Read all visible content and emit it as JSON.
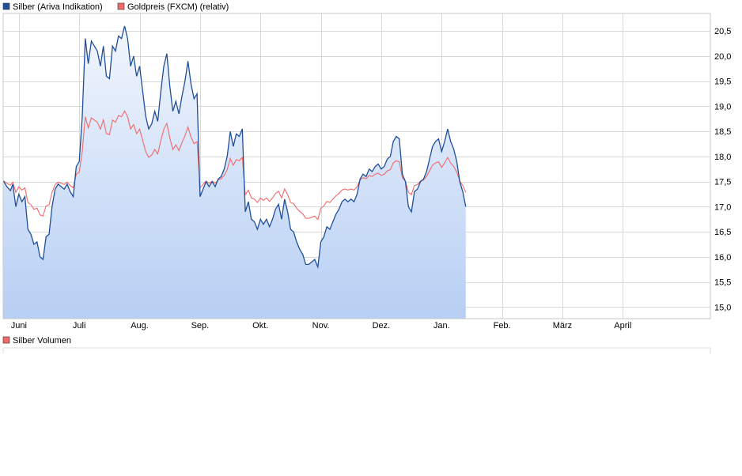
{
  "chart_data": [
    {
      "type": "line",
      "legend": [
        {
          "label": "Silber (Ariva Indikation)",
          "color": "#1f4e9a"
        },
        {
          "label": "Goldpreis (FXCM) (relativ)",
          "color": "#f06a6a"
        }
      ],
      "x_tick_labels": [
        "Juni",
        "Juli",
        "Aug.",
        "Sep.",
        "Okt.",
        "Nov.",
        "Dez.",
        "Jan.",
        "Feb.",
        "März",
        "April"
      ],
      "y_tick_labels": [
        "15,0",
        "15,5",
        "16,0",
        "16,5",
        "17,0",
        "17,5",
        "18,0",
        "18,5",
        "19,0",
        "19,5",
        "20,0",
        "20,5"
      ],
      "y_ticks": [
        15.0,
        15.5,
        16.0,
        16.5,
        17.0,
        17.5,
        18.0,
        18.5,
        19.0,
        19.5,
        20.0,
        20.5
      ],
      "ylim": [
        14.77,
        20.85
      ],
      "x_unit": "month index (0 = start of May)",
      "xlim": [
        0.74,
        12.45
      ],
      "x_ticks": [
        1.0,
        2.0,
        3.0,
        4.0,
        5.0,
        6.0,
        7.0,
        8.0,
        9.0,
        10.0,
        11.0
      ],
      "grid": true,
      "legend_position": "top-left",
      "area_fill": true,
      "series": [
        {
          "name": "Silber (Ariva Indikation)",
          "color": "#1f4e9a",
          "points": [
            [
              0.74,
              17.52
            ],
            [
              0.8,
              17.4
            ],
            [
              0.86,
              17.32
            ],
            [
              0.9,
              17.45
            ],
            [
              0.95,
              17.0
            ],
            [
              1.0,
              17.25
            ],
            [
              1.05,
              17.1
            ],
            [
              1.1,
              17.2
            ],
            [
              1.15,
              16.55
            ],
            [
              1.2,
              16.45
            ],
            [
              1.25,
              16.25
            ],
            [
              1.3,
              16.3
            ],
            [
              1.35,
              16.0
            ],
            [
              1.4,
              15.95
            ],
            [
              1.45,
              16.4
            ],
            [
              1.5,
              16.45
            ],
            [
              1.55,
              17.0
            ],
            [
              1.6,
              17.35
            ],
            [
              1.65,
              17.45
            ],
            [
              1.7,
              17.4
            ],
            [
              1.75,
              17.35
            ],
            [
              1.8,
              17.45
            ],
            [
              1.85,
              17.3
            ],
            [
              1.9,
              17.2
            ],
            [
              1.95,
              17.8
            ],
            [
              2.0,
              17.9
            ],
            [
              2.05,
              18.8
            ],
            [
              2.1,
              20.35
            ],
            [
              2.15,
              19.85
            ],
            [
              2.2,
              20.3
            ],
            [
              2.25,
              20.2
            ],
            [
              2.3,
              20.1
            ],
            [
              2.35,
              19.8
            ],
            [
              2.4,
              20.2
            ],
            [
              2.45,
              19.6
            ],
            [
              2.5,
              19.55
            ],
            [
              2.55,
              20.2
            ],
            [
              2.6,
              20.1
            ],
            [
              2.65,
              20.4
            ],
            [
              2.7,
              20.35
            ],
            [
              2.75,
              20.6
            ],
            [
              2.8,
              20.35
            ],
            [
              2.85,
              19.8
            ],
            [
              2.9,
              20.0
            ],
            [
              2.95,
              19.6
            ],
            [
              3.0,
              19.8
            ],
            [
              3.05,
              19.3
            ],
            [
              3.1,
              18.8
            ],
            [
              3.15,
              18.55
            ],
            [
              3.2,
              18.65
            ],
            [
              3.25,
              18.9
            ],
            [
              3.3,
              18.7
            ],
            [
              3.35,
              19.3
            ],
            [
              3.4,
              19.8
            ],
            [
              3.45,
              20.05
            ],
            [
              3.5,
              19.4
            ],
            [
              3.55,
              18.9
            ],
            [
              3.6,
              19.1
            ],
            [
              3.65,
              18.85
            ],
            [
              3.7,
              19.2
            ],
            [
              3.75,
              19.5
            ],
            [
              3.8,
              19.9
            ],
            [
              3.85,
              19.45
            ],
            [
              3.9,
              19.15
            ],
            [
              3.95,
              19.25
            ],
            [
              4.0,
              17.2
            ],
            [
              4.05,
              17.35
            ],
            [
              4.1,
              17.5
            ],
            [
              4.15,
              17.4
            ],
            [
              4.2,
              17.5
            ],
            [
              4.25,
              17.4
            ],
            [
              4.3,
              17.55
            ],
            [
              4.35,
              17.6
            ],
            [
              4.4,
              17.75
            ],
            [
              4.45,
              18.0
            ],
            [
              4.5,
              18.5
            ],
            [
              4.55,
              18.2
            ],
            [
              4.6,
              18.45
            ],
            [
              4.65,
              18.4
            ],
            [
              4.7,
              18.55
            ],
            [
              4.75,
              16.9
            ],
            [
              4.8,
              17.1
            ],
            [
              4.85,
              16.75
            ],
            [
              4.9,
              16.7
            ],
            [
              4.95,
              16.55
            ],
            [
              5.0,
              16.75
            ],
            [
              5.05,
              16.65
            ],
            [
              5.1,
              16.75
            ],
            [
              5.15,
              16.6
            ],
            [
              5.2,
              16.75
            ],
            [
              5.25,
              16.95
            ],
            [
              5.3,
              17.05
            ],
            [
              5.35,
              16.75
            ],
            [
              5.4,
              17.15
            ],
            [
              5.45,
              16.9
            ],
            [
              5.5,
              16.55
            ],
            [
              5.55,
              16.5
            ],
            [
              5.6,
              16.3
            ],
            [
              5.65,
              16.15
            ],
            [
              5.7,
              16.05
            ],
            [
              5.75,
              15.85
            ],
            [
              5.8,
              15.85
            ],
            [
              5.85,
              15.9
            ],
            [
              5.9,
              15.95
            ],
            [
              5.95,
              15.8
            ],
            [
              6.0,
              16.3
            ],
            [
              6.05,
              16.4
            ],
            [
              6.1,
              16.6
            ],
            [
              6.15,
              16.55
            ],
            [
              6.2,
              16.7
            ],
            [
              6.25,
              16.85
            ],
            [
              6.3,
              16.95
            ],
            [
              6.35,
              17.1
            ],
            [
              6.4,
              17.15
            ],
            [
              6.45,
              17.1
            ],
            [
              6.5,
              17.15
            ],
            [
              6.55,
              17.1
            ],
            [
              6.6,
              17.25
            ],
            [
              6.65,
              17.55
            ],
            [
              6.7,
              17.65
            ],
            [
              6.75,
              17.6
            ],
            [
              6.8,
              17.75
            ],
            [
              6.85,
              17.7
            ],
            [
              6.9,
              17.8
            ],
            [
              6.95,
              17.85
            ],
            [
              7.0,
              17.75
            ],
            [
              7.05,
              17.8
            ],
            [
              7.1,
              17.95
            ],
            [
              7.15,
              18.0
            ],
            [
              7.2,
              18.3
            ],
            [
              7.25,
              18.4
            ],
            [
              7.3,
              18.35
            ],
            [
              7.35,
              17.65
            ],
            [
              7.4,
              17.5
            ],
            [
              7.45,
              17.0
            ],
            [
              7.5,
              16.9
            ],
            [
              7.55,
              17.3
            ],
            [
              7.6,
              17.35
            ],
            [
              7.65,
              17.5
            ],
            [
              7.7,
              17.55
            ],
            [
              7.75,
              17.7
            ],
            [
              7.8,
              17.95
            ],
            [
              7.85,
              18.2
            ],
            [
              7.9,
              18.3
            ],
            [
              7.95,
              18.35
            ],
            [
              8.0,
              18.1
            ],
            [
              8.05,
              18.3
            ],
            [
              8.1,
              18.55
            ],
            [
              8.15,
              18.3
            ],
            [
              8.2,
              18.15
            ],
            [
              8.25,
              17.9
            ],
            [
              8.3,
              17.5
            ],
            [
              8.35,
              17.3
            ],
            [
              8.4,
              17.0
            ]
          ]
        },
        {
          "name": "Goldpreis (FXCM) (relativ)",
          "color": "#f06a6a"
        }
      ]
    },
    {
      "type": "bar",
      "legend": [
        {
          "label": "Silber Volumen",
          "color": "#f06a6a"
        }
      ]
    }
  ]
}
